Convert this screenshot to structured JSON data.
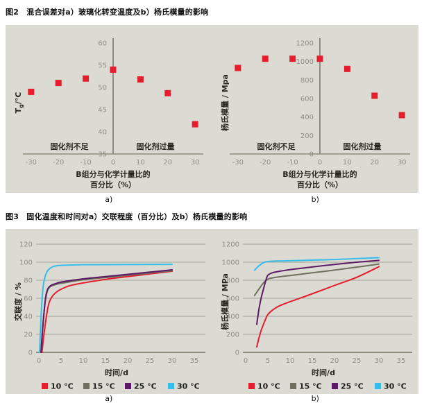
{
  "colors": {
    "panel_bg": "#dbdbd3",
    "axis": "#8c8c7e",
    "grid": "#a6a69a",
    "tick_text": "#8f8f84",
    "red": "#e51d2c",
    "gray": "#6e6f5f",
    "purple": "#5c1a66",
    "cyan": "#35bdec"
  },
  "figures": [
    {
      "title": "图2　混合误差对a）玻璃化转变温度及b）杨氏模量的影响"
    },
    {
      "title": "图3　固化温度和时间对a）交联程度（百分比）及b）杨氏模量的影响"
    }
  ],
  "chart_data": [
    {
      "type": "scatter",
      "caption": "a)",
      "ylabel_parts": [
        "T",
        "g",
        "/°C"
      ],
      "xlabel_lines": [
        "B组分与化学计量比的",
        "百分比（%）"
      ],
      "annotation_left": "固化剂不足",
      "annotation_right": "固化剂过量",
      "x_ticks": [
        -30,
        -20,
        -10,
        0,
        10,
        20,
        30
      ],
      "y_ticks": [
        35,
        40,
        45,
        50,
        55,
        60
      ],
      "xlim": [
        -33,
        33
      ],
      "ylim": [
        35,
        60
      ],
      "marker_color": "#e51d2c",
      "points": [
        [
          -30,
          49
        ],
        [
          -20,
          51
        ],
        [
          -10,
          52
        ],
        [
          0,
          54
        ],
        [
          10,
          51.8
        ],
        [
          20,
          48.7
        ],
        [
          30,
          41.7
        ]
      ]
    },
    {
      "type": "scatter",
      "caption": "b)",
      "ylabel": "杨氏模量 / Mpa",
      "xlabel_lines": [
        "B组分与化学计量比的",
        "百分比（%）"
      ],
      "annotation_left": "固化剂不足",
      "annotation_right": "固化剂过量",
      "x_ticks": [
        -30,
        -20,
        -10,
        0,
        10,
        20,
        30
      ],
      "y_ticks": [
        0,
        200,
        400,
        600,
        800,
        1000,
        1200
      ],
      "xlim": [
        -33,
        33
      ],
      "ylim": [
        0,
        1200
      ],
      "marker_color": "#e51d2c",
      "points": [
        [
          -30,
          930
        ],
        [
          -20,
          1030
        ],
        [
          -10,
          1030
        ],
        [
          0,
          1030
        ],
        [
          10,
          920
        ],
        [
          20,
          630
        ],
        [
          30,
          420
        ]
      ]
    },
    {
      "type": "line",
      "caption": "a)",
      "ylabel": "交联度 / %",
      "xlabel": "时间/d",
      "x_ticks": [
        0,
        5,
        10,
        15,
        20,
        25,
        30,
        35
      ],
      "y_ticks": [
        0,
        20,
        40,
        60,
        80,
        100,
        120
      ],
      "xlim": [
        0,
        35
      ],
      "ylim": [
        0,
        120
      ],
      "legend_position": "bottom",
      "series": [
        {
          "name": "10 °C",
          "color": "#e51d2c",
          "points": [
            [
              0.7,
              0
            ],
            [
              1.2,
              22
            ],
            [
              1.8,
              43
            ],
            [
              2.3,
              55
            ],
            [
              3,
              62
            ],
            [
              4,
              67
            ],
            [
              5,
              70
            ],
            [
              7,
              74
            ],
            [
              10,
              77
            ],
            [
              15,
              81
            ],
            [
              20,
              84
            ],
            [
              25,
              87
            ],
            [
              30,
              90
            ]
          ]
        },
        {
          "name": "15 °C",
          "color": "#6e6f5f",
          "points": [
            [
              0.45,
              0
            ],
            [
              0.9,
              30
            ],
            [
              1.4,
              55
            ],
            [
              1.8,
              66
            ],
            [
              2.2,
              71
            ],
            [
              2.8,
              73.5
            ],
            [
              4,
              75.5
            ],
            [
              5,
              76.5
            ],
            [
              10,
              80.5
            ],
            [
              15,
              83
            ],
            [
              20,
              85.5
            ],
            [
              25,
              88
            ],
            [
              30,
              90.5
            ]
          ]
        },
        {
          "name": "25 °C",
          "color": "#5c1a66",
          "points": [
            [
              0.5,
              0
            ],
            [
              1.0,
              35
            ],
            [
              1.5,
              60
            ],
            [
              1.9,
              69
            ],
            [
              2.3,
              72.5
            ],
            [
              3,
              75
            ],
            [
              4,
              76.5
            ],
            [
              5,
              78
            ],
            [
              10,
              81.5
            ],
            [
              15,
              84
            ],
            [
              20,
              86.5
            ],
            [
              25,
              89
            ],
            [
              30,
              91.5
            ]
          ]
        },
        {
          "name": "30 °C",
          "color": "#35bdec",
          "points": [
            [
              0.15,
              0
            ],
            [
              0.55,
              45
            ],
            [
              0.95,
              72
            ],
            [
              1.4,
              84
            ],
            [
              1.9,
              90
            ],
            [
              2.6,
              93.5
            ],
            [
              3.5,
              95.5
            ],
            [
              5,
              96.5
            ],
            [
              10,
              97.2
            ],
            [
              20,
              97.4
            ],
            [
              30,
              97.6
            ]
          ]
        }
      ]
    },
    {
      "type": "line",
      "caption": "b)",
      "ylabel": "杨氏模量 / MPa",
      "xlabel": "时间/d",
      "x_ticks": [
        0,
        5,
        10,
        15,
        20,
        25,
        30,
        35
      ],
      "y_ticks": [
        0,
        200,
        400,
        600,
        800,
        1000,
        1200
      ],
      "xlim": [
        0,
        35
      ],
      "ylim": [
        0,
        1200
      ],
      "legend_position": "bottom",
      "series": [
        {
          "name": "10 °C",
          "color": "#e51d2c",
          "points": [
            [
              2.5,
              60
            ],
            [
              3,
              160
            ],
            [
              3.5,
              245
            ],
            [
              4,
              310
            ],
            [
              4.5,
              370
            ],
            [
              5,
              420
            ],
            [
              6,
              467
            ],
            [
              7,
              500
            ],
            [
              8,
              525
            ],
            [
              10,
              562
            ],
            [
              12,
              597
            ],
            [
              15,
              650
            ],
            [
              20,
              742
            ],
            [
              25,
              832
            ],
            [
              30,
              950
            ]
          ]
        },
        {
          "name": "15 °C",
          "color": "#6e6f5f",
          "points": [
            [
              2,
              630
            ],
            [
              2.5,
              667
            ],
            [
              3,
              702
            ],
            [
              4,
              770
            ],
            [
              5,
              812
            ],
            [
              6,
              826
            ],
            [
              8,
              841
            ],
            [
              10,
              852
            ],
            [
              15,
              882
            ],
            [
              20,
              912
            ],
            [
              25,
              945
            ],
            [
              30,
              980
            ]
          ]
        },
        {
          "name": "25 °C",
          "color": "#5c1a66",
          "points": [
            [
              2.5,
              310
            ],
            [
              3,
              480
            ],
            [
              3.5,
              605
            ],
            [
              4,
              700
            ],
            [
              4.5,
              790
            ],
            [
              5,
              855
            ],
            [
              6,
              882
            ],
            [
              8,
              902
            ],
            [
              10,
              917
            ],
            [
              15,
              947
            ],
            [
              20,
              975
            ],
            [
              25,
              1000
            ],
            [
              30,
              1020
            ]
          ]
        },
        {
          "name": "30 °C",
          "color": "#35bdec",
          "points": [
            [
              2,
              910
            ],
            [
              2.5,
              937
            ],
            [
              3,
              960
            ],
            [
              4,
              995
            ],
            [
              5,
              1008
            ],
            [
              7,
              1013
            ],
            [
              10,
              1016
            ],
            [
              15,
              1023
            ],
            [
              20,
              1030
            ],
            [
              25,
              1040
            ],
            [
              30,
              1050
            ]
          ]
        }
      ]
    }
  ]
}
